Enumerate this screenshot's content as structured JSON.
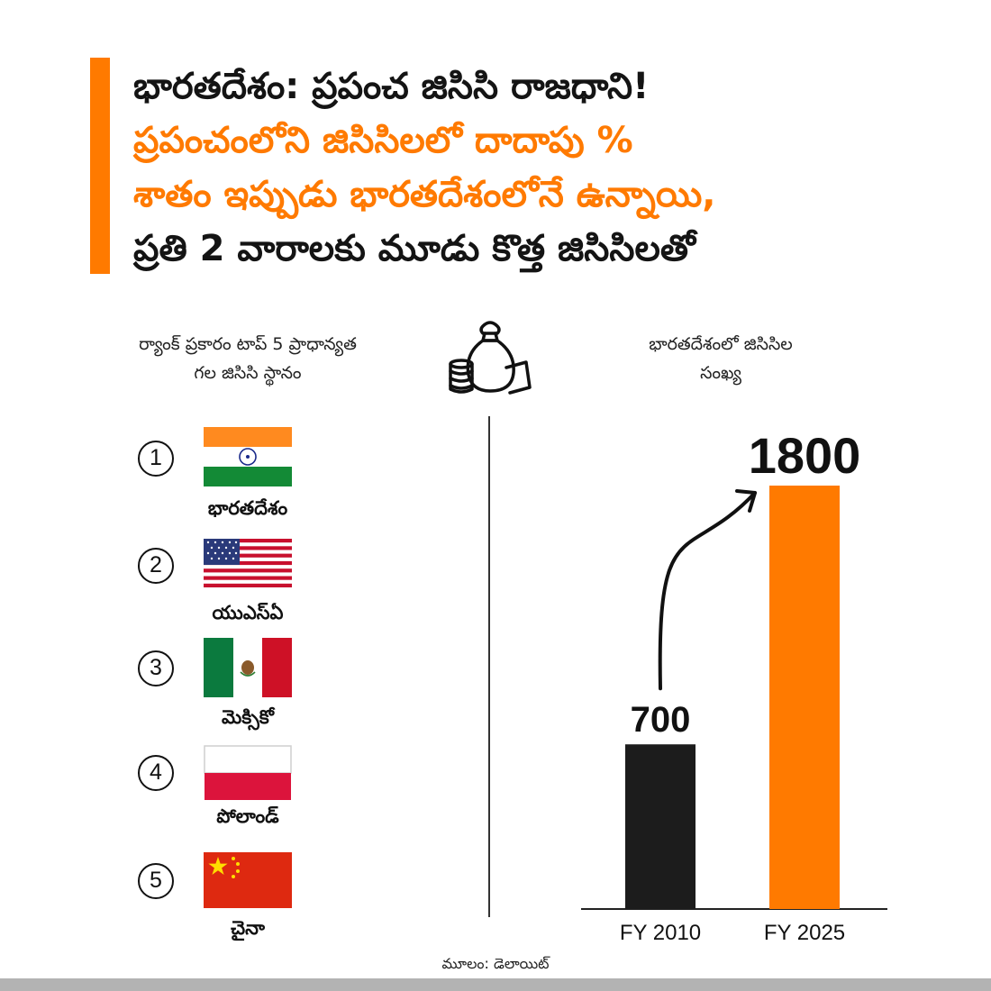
{
  "headline": {
    "line1": "భారతదేశం: ప్రపంచ జిసిసి రాజధాని!",
    "line2": "ప్రపంచంలోని జిసిసిలలో దాదాపు %",
    "line3": "శాతం ఇప్పుడు భారతదేశంలోనే ఉన్నాయి,",
    "line4": "ప్రతి 2 వారాలకు మూడు కొత్త జిసిసిలతో"
  },
  "left_section": {
    "heading_line1": "ర్యాంక్ ప్రకారం టాప్ 5 ప్రాధాన్యత",
    "heading_line2": "గల జిసిసి స్థానం",
    "ranks": [
      {
        "rank": "1",
        "country": "భారతదేశం",
        "flag": "india-flag-icon"
      },
      {
        "rank": "2",
        "country": "యుఎస్ఏ",
        "flag": "usa-flag-icon"
      },
      {
        "rank": "3",
        "country": "మెక్సికో",
        "flag": "mexico-flag-icon"
      },
      {
        "rank": "4",
        "country": "పోలాండ్",
        "flag": "poland-flag-icon"
      },
      {
        "rank": "5",
        "country": "చైనా",
        "flag": "china-flag-icon"
      }
    ]
  },
  "right_section": {
    "heading_line1": "భారతదేశంలో జిసిసిల",
    "heading_line2": "సంఖ్య"
  },
  "icon": "money-bag-icon",
  "source": "మూలం: డెలాయిట్",
  "colors": {
    "accent": "#ff7a00",
    "dark_bar": "#1c1c1c",
    "text": "#141414"
  },
  "chart_data": {
    "type": "bar",
    "categories": [
      "FY 2010",
      "FY 2025"
    ],
    "values": [
      700,
      1800
    ],
    "value_labels": [
      "700",
      "1800"
    ],
    "bar_colors": [
      "#1c1c1c",
      "#ff7a00"
    ],
    "ylim": [
      0,
      1800
    ],
    "grid": false,
    "legend": "none"
  }
}
